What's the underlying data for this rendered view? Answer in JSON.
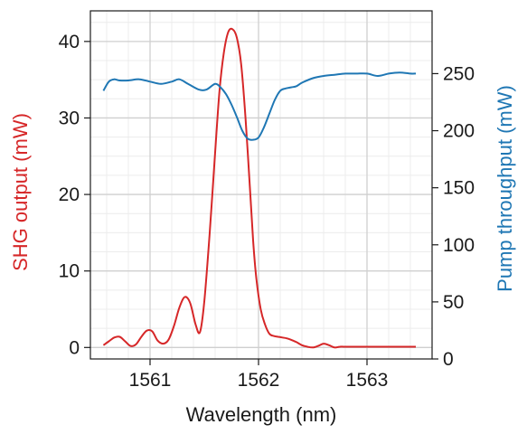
{
  "chart_data": {
    "type": "line",
    "title": "",
    "xlabel": "Wavelength (nm)",
    "ylabel_left": "SHG output (mW)",
    "ylabel_right": "Pump throughput (mW)",
    "xlim": [
      1560.45,
      1563.6
    ],
    "ylim_left": [
      -1.5,
      44
    ],
    "ylim_right": [
      0,
      305
    ],
    "x_ticks": [
      {
        "value": 1561,
        "label": "1561"
      },
      {
        "value": 1562,
        "label": "1562"
      },
      {
        "value": 1563,
        "label": "1563"
      }
    ],
    "y_left_ticks": [
      {
        "value": 0,
        "label": "0"
      },
      {
        "value": 10,
        "label": "10"
      },
      {
        "value": 20,
        "label": "20"
      },
      {
        "value": 30,
        "label": "30"
      },
      {
        "value": 40,
        "label": "40"
      }
    ],
    "y_right_ticks": [
      {
        "value": 0,
        "label": "0"
      },
      {
        "value": 50,
        "label": "50"
      },
      {
        "value": 100,
        "label": "100"
      },
      {
        "value": 150,
        "label": "150"
      },
      {
        "value": 200,
        "label": "200"
      },
      {
        "value": 250,
        "label": "250"
      }
    ],
    "grid": true,
    "colors": {
      "shg": "#d62728",
      "pump": "#1f77b4",
      "grid_major": "#cfcfcf",
      "grid_minor": "#ececec"
    },
    "series": [
      {
        "axis": "left",
        "color": "#d62728",
        "x": [
          1560.57,
          1560.62,
          1560.67,
          1560.72,
          1560.77,
          1560.82,
          1560.87,
          1560.92,
          1560.97,
          1561.02,
          1561.07,
          1561.12,
          1561.17,
          1561.22,
          1561.27,
          1561.32,
          1561.37,
          1561.42,
          1561.46,
          1561.5,
          1561.55,
          1561.6,
          1561.64,
          1561.68,
          1561.72,
          1561.76,
          1561.8,
          1561.84,
          1561.88,
          1561.92,
          1561.95,
          1561.98,
          1562.02,
          1562.06,
          1562.1,
          1562.14,
          1562.18,
          1562.22,
          1562.26,
          1562.3,
          1562.35,
          1562.4,
          1562.45,
          1562.5,
          1562.55,
          1562.6,
          1562.65,
          1562.7,
          1562.75,
          1562.8,
          1562.85,
          1562.9,
          1562.95,
          1563.0,
          1563.1,
          1563.2,
          1563.3,
          1563.4,
          1563.45
        ],
        "y": [
          0.3,
          0.8,
          1.3,
          1.4,
          0.8,
          0.2,
          0.4,
          1.4,
          2.2,
          2.1,
          0.9,
          0.5,
          1.0,
          2.8,
          5.2,
          6.6,
          5.8,
          3.0,
          2.0,
          6.0,
          15.0,
          25.5,
          33.5,
          38.5,
          41.2,
          41.6,
          40.5,
          37.0,
          30.0,
          21.0,
          14.0,
          9.0,
          5.0,
          3.0,
          1.8,
          1.5,
          1.4,
          1.3,
          1.2,
          1.0,
          0.7,
          0.3,
          0.1,
          0.0,
          0.2,
          0.5,
          0.3,
          0.0,
          0.1,
          0.1,
          0.1,
          0.1,
          0.1,
          0.1,
          0.1,
          0.1,
          0.1,
          0.1,
          0.1
        ]
      },
      {
        "axis": "right",
        "color": "#1f77b4",
        "x": [
          1560.57,
          1560.62,
          1560.67,
          1560.72,
          1560.8,
          1560.9,
          1561.0,
          1561.1,
          1561.2,
          1561.27,
          1561.35,
          1561.45,
          1561.52,
          1561.6,
          1561.65,
          1561.7,
          1561.75,
          1561.8,
          1561.85,
          1561.9,
          1561.95,
          1562.0,
          1562.05,
          1562.1,
          1562.15,
          1562.2,
          1562.25,
          1562.3,
          1562.35,
          1562.4,
          1562.5,
          1562.6,
          1562.7,
          1562.8,
          1562.9,
          1563.0,
          1563.1,
          1563.2,
          1563.3,
          1563.4,
          1563.45
        ],
        "y": [
          235,
          243,
          245,
          244,
          244,
          245,
          243,
          241,
          243,
          245,
          241,
          236,
          236,
          241,
          238,
          232,
          223,
          212,
          200,
          193,
          192,
          194,
          203,
          215,
          227,
          235,
          237,
          238,
          239,
          242,
          246,
          248,
          249,
          250,
          250,
          250,
          248,
          250,
          251,
          250,
          250
        ]
      }
    ]
  }
}
